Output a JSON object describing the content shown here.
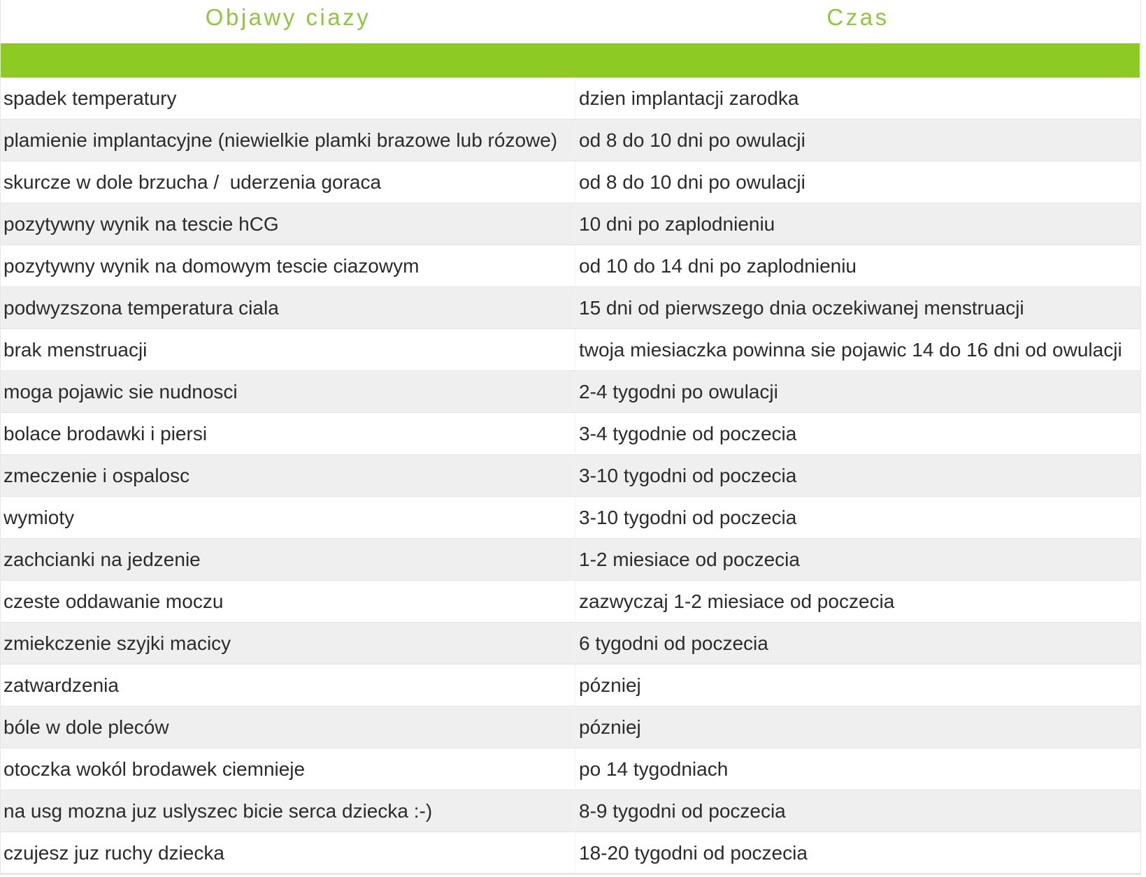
{
  "table": {
    "headers": [
      "Objawy ciazy",
      "Czas"
    ],
    "accent_color": "#8dc63f",
    "bar_color": "#8dca24",
    "rows": [
      [
        "spadek temperatury",
        "dzien implantacji zarodka"
      ],
      [
        "plamienie implantacyjne (niewielkie plamki brazowe lub rózowe)",
        "od 8 do 10 dni po owulacji"
      ],
      [
        "skurcze w dole brzucha /  uderzenia goraca",
        "od 8 do 10 dni po owulacji"
      ],
      [
        "pozytywny wynik na tescie hCG",
        "10 dni po zaplodnieniu"
      ],
      [
        "pozytywny wynik na domowym tescie ciazowym",
        "od 10 do 14 dni po zaplodnieniu"
      ],
      [
        "podwyzszona temperatura ciala",
        "15 dni od pierwszego dnia oczekiwanej menstruacji"
      ],
      [
        "brak menstruacji",
        "twoja miesiaczka powinna sie pojawic 14 do 16 dni od owulacji"
      ],
      [
        "moga pojawic sie nudnosci",
        "2-4 tygodni po owulacji"
      ],
      [
        "bolace brodawki i piersi",
        "3-4 tygodnie od poczecia"
      ],
      [
        "zmeczenie i ospalosc",
        "3-10 tygodni od poczecia"
      ],
      [
        "wymioty",
        "3-10 tygodni od poczecia"
      ],
      [
        "zachcianki na jedzenie",
        "1-2 miesiace od poczecia"
      ],
      [
        "czeste oddawanie moczu",
        "zazwyczaj 1-2 miesiace od poczecia"
      ],
      [
        "zmiekczenie szyjki macicy",
        "6 tygodni od poczecia"
      ],
      [
        "zatwardzenia",
        "pózniej"
      ],
      [
        "bóle w dole pleców",
        "pózniej"
      ],
      [
        "otoczka wokól brodawek ciemnieje",
        "po 14 tygodniach"
      ],
      [
        "na usg mozna juz uslyszec bicie serca dziecka :-)",
        "8-9 tygodni od poczecia"
      ],
      [
        "czujesz juz ruchy dziecka",
        "18-20 tygodni od poczecia"
      ]
    ]
  }
}
